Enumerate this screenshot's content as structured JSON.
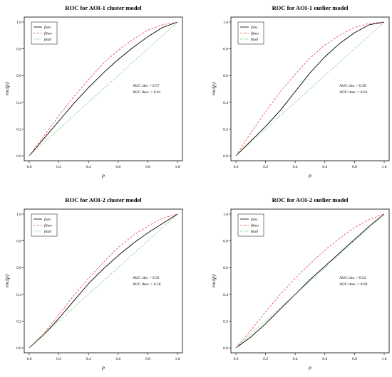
{
  "chart_data": [
    {
      "type": "line",
      "title": "ROC for AOI-1 cluster model",
      "xlabel": "p",
      "ylabel": "roc(p)",
      "xlim": [
        0,
        1
      ],
      "ylim": [
        0,
        1
      ],
      "xticks": [
        "0.0",
        "0.2",
        "0.4",
        "0.6",
        "0.8",
        "1.0"
      ],
      "yticks": [
        "0.0",
        "0.2",
        "0.4",
        "0.6",
        "0.8",
        "1.0"
      ],
      "legend": {
        "position": "top-left",
        "entries": [
          "fobs",
          "ftheo",
          "fnull"
        ]
      },
      "annotations": [
        "AUC obs. = 0.57",
        "AUC theo. = 0.61"
      ],
      "series": [
        {
          "name": "fobs",
          "color": "#000000",
          "dash": "solid",
          "x": [
            0,
            0.1,
            0.2,
            0.3,
            0.4,
            0.5,
            0.6,
            0.7,
            0.8,
            0.9,
            1.0
          ],
          "values": [
            0,
            0.13,
            0.26,
            0.39,
            0.51,
            0.62,
            0.72,
            0.81,
            0.89,
            0.96,
            1.0
          ]
        },
        {
          "name": "ftheo",
          "color": "#e8485f",
          "dash": "dashed",
          "x": [
            0,
            0.1,
            0.2,
            0.3,
            0.4,
            0.5,
            0.6,
            0.7,
            0.8,
            0.9,
            1.0
          ],
          "values": [
            0,
            0.15,
            0.3,
            0.44,
            0.57,
            0.69,
            0.79,
            0.87,
            0.94,
            0.98,
            1.0
          ]
        },
        {
          "name": "fnull",
          "color": "#3cbf3c",
          "dash": "dotted",
          "x": [
            0,
            1
          ],
          "values": [
            0,
            1
          ]
        }
      ]
    },
    {
      "type": "line",
      "title": "ROC for AOI-1 outlier model",
      "xlabel": "p",
      "ylabel": "roc(p)",
      "xlim": [
        0,
        1
      ],
      "ylim": [
        0,
        1
      ],
      "xticks": [
        "0.0",
        "0.2",
        "0.4",
        "0.6",
        "0.8",
        "1.0"
      ],
      "yticks": [
        "0.0",
        "0.2",
        "0.4",
        "0.6",
        "0.8",
        "1.0"
      ],
      "legend": {
        "position": "top-left",
        "entries": [
          "fobs",
          "ftheo",
          "fnull"
        ]
      },
      "annotations": [
        "AUC obs. = 0.58",
        "AUC theo. = 0.63"
      ],
      "series": [
        {
          "name": "fobs",
          "color": "#000000",
          "dash": "solid",
          "x": [
            0,
            0.1,
            0.2,
            0.3,
            0.4,
            0.5,
            0.6,
            0.7,
            0.8,
            0.9,
            1.0
          ],
          "values": [
            0,
            0.11,
            0.22,
            0.34,
            0.48,
            0.62,
            0.74,
            0.84,
            0.92,
            0.98,
            1.0
          ]
        },
        {
          "name": "ftheo",
          "color": "#e8485f",
          "dash": "dashed",
          "x": [
            0,
            0.1,
            0.2,
            0.3,
            0.4,
            0.5,
            0.6,
            0.7,
            0.8,
            0.9,
            1.0
          ],
          "values": [
            0,
            0.17,
            0.33,
            0.48,
            0.61,
            0.73,
            0.83,
            0.9,
            0.96,
            0.99,
            1.0
          ]
        },
        {
          "name": "fnull",
          "color": "#3cbf3c",
          "dash": "dotted",
          "x": [
            0,
            1
          ],
          "values": [
            0,
            1
          ]
        }
      ]
    },
    {
      "type": "line",
      "title": "ROC for AOI-2 cluster model",
      "xlabel": "p",
      "ylabel": "roc(p)",
      "xlim": [
        0,
        1
      ],
      "ylim": [
        0,
        1
      ],
      "xticks": [
        "0.0",
        "0.2",
        "0.4",
        "0.6",
        "0.8",
        "1.0"
      ],
      "yticks": [
        "0.0",
        "0.2",
        "0.4",
        "0.6",
        "0.8",
        "1.0"
      ],
      "legend": {
        "position": "top-left",
        "entries": [
          "fobs",
          "ftheo",
          "fnull"
        ]
      },
      "annotations": [
        "AUC obs. = 0.52",
        "AUC theo. = 0.58"
      ],
      "series": [
        {
          "name": "fobs",
          "color": "#000000",
          "dash": "solid",
          "x": [
            0,
            0.1,
            0.2,
            0.3,
            0.4,
            0.5,
            0.6,
            0.7,
            0.8,
            0.9,
            1.0
          ],
          "values": [
            0,
            0.1,
            0.22,
            0.35,
            0.48,
            0.59,
            0.69,
            0.78,
            0.86,
            0.93,
            1.0
          ]
        },
        {
          "name": "ftheo",
          "color": "#e8485f",
          "dash": "dashed",
          "x": [
            0,
            0.1,
            0.2,
            0.3,
            0.4,
            0.5,
            0.6,
            0.7,
            0.8,
            0.9,
            1.0
          ],
          "values": [
            0,
            0.11,
            0.25,
            0.39,
            0.52,
            0.64,
            0.75,
            0.84,
            0.91,
            0.97,
            1.0
          ]
        },
        {
          "name": "fnull",
          "color": "#3cbf3c",
          "dash": "dotted",
          "x": [
            0,
            1
          ],
          "values": [
            0,
            1
          ]
        }
      ]
    },
    {
      "type": "line",
      "title": "ROC for AOI-2 outlier model",
      "xlabel": "p",
      "ylabel": "roc(p)",
      "xlim": [
        0,
        1
      ],
      "ylim": [
        0,
        1
      ],
      "xticks": [
        "0.0",
        "0.2",
        "0.4",
        "0.6",
        "0.8",
        "1.0"
      ],
      "yticks": [
        "0.0",
        "0.2",
        "0.4",
        "0.6",
        "0.8",
        "1.0"
      ],
      "legend": {
        "position": "top-left",
        "entries": [
          "fobs",
          "ftheo",
          "fnull"
        ]
      },
      "annotations": [
        "AUC obs. = 0.52",
        "AUC theo. = 0.60"
      ],
      "series": [
        {
          "name": "fobs",
          "color": "#000000",
          "dash": "solid",
          "x": [
            0,
            0.1,
            0.2,
            0.3,
            0.4,
            0.5,
            0.6,
            0.7,
            0.8,
            0.9,
            1.0
          ],
          "values": [
            0,
            0.08,
            0.18,
            0.29,
            0.4,
            0.51,
            0.61,
            0.71,
            0.81,
            0.91,
            1.0
          ]
        },
        {
          "name": "ftheo",
          "color": "#e8485f",
          "dash": "dashed",
          "x": [
            0,
            0.1,
            0.2,
            0.3,
            0.4,
            0.5,
            0.6,
            0.7,
            0.8,
            0.9,
            1.0
          ],
          "values": [
            0,
            0.13,
            0.27,
            0.4,
            0.52,
            0.63,
            0.73,
            0.82,
            0.9,
            0.96,
            1.0
          ]
        },
        {
          "name": "fnull",
          "color": "#3cbf3c",
          "dash": "dotted",
          "x": [
            0,
            1
          ],
          "values": [
            0,
            1
          ]
        }
      ]
    }
  ]
}
